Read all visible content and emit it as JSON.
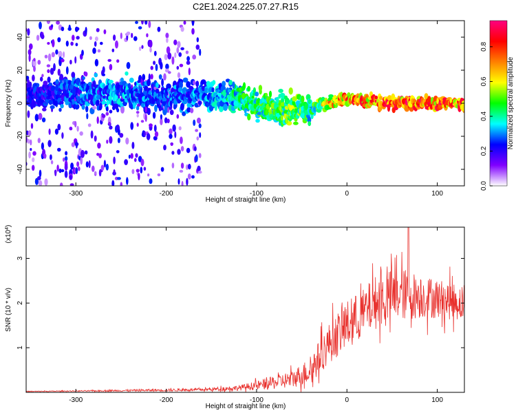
{
  "title": "C2E1.2024.225.07.27.R15",
  "colors": {
    "snr_line": "#e8302c",
    "frame": "#000000"
  },
  "chart_data": [
    {
      "type": "heatmap",
      "name": "spectrogram",
      "xlabel": "Height of straight line (km)",
      "ylabel": "Frequency (Hz)",
      "xlim": [
        -355,
        130
      ],
      "ylim": [
        -50,
        50
      ],
      "xticks": [
        -300,
        -200,
        -100,
        0,
        100
      ],
      "yticks": [
        -40,
        -20,
        0,
        20,
        40
      ],
      "xtick_labels": [
        "-300",
        "-200",
        "-100",
        "0",
        "100"
      ],
      "ytick_labels": [
        "-40",
        "-20",
        "0",
        "20",
        "40"
      ],
      "colorbar": {
        "label": "Normalized spectral amplitude",
        "range": [
          0,
          0.95
        ],
        "ticks": [
          0.0,
          0.2,
          0.4,
          0.6,
          0.8
        ],
        "tick_labels": [
          "0.0",
          "0.2",
          "0.4",
          "0.6",
          "0.8"
        ],
        "colormap": [
          "#ffffff",
          "#8000ff",
          "#0000ff",
          "#00ffff",
          "#00ff00",
          "#ffff00",
          "#ff8000",
          "#ff0000",
          "#ff0080"
        ]
      },
      "ridge": {
        "x": [
          -350,
          -300,
          -250,
          -200,
          -170,
          -150,
          -120,
          -100,
          -80,
          -60,
          -50,
          -40,
          -30,
          -20,
          -10,
          0,
          30,
          60,
          100,
          125
        ],
        "freq": [
          5,
          6,
          6,
          3,
          5,
          5,
          3,
          -2,
          -3,
          -4,
          -3,
          -4,
          -1,
          0,
          2,
          3,
          1,
          0,
          0,
          0
        ],
        "amplitude": [
          0.25,
          0.3,
          0.35,
          0.3,
          0.32,
          0.35,
          0.45,
          0.5,
          0.5,
          0.55,
          0.55,
          0.45,
          0.55,
          0.7,
          0.75,
          0.8,
          0.85,
          0.85,
          0.85,
          0.85
        ]
      },
      "noise_region": [
        -355,
        -160
      ]
    },
    {
      "type": "line",
      "name": "snr",
      "xlabel": "Height of straight line (km)",
      "ylabel": "SNR (10 * v/v)",
      "scale_label": "(x10",
      "scale_exp": "4",
      "xlim": [
        -355,
        130
      ],
      "ylim": [
        0,
        3.7
      ],
      "xticks": [
        -300,
        -200,
        -100,
        0,
        100
      ],
      "yticks": [
        1,
        2,
        3
      ],
      "xtick_labels": [
        "-300",
        "-200",
        "-100",
        "0",
        "100"
      ],
      "ytick_labels": [
        "1",
        "2",
        "3"
      ],
      "series": [
        {
          "x": [
            -355,
            -300,
            -250,
            -200,
            -160,
            -120,
            -100,
            -80,
            -60,
            -40,
            -30,
            -20,
            -10,
            0,
            10,
            20,
            30,
            40,
            60,
            80,
            100,
            130
          ],
          "mean": [
            0.02,
            0.03,
            0.04,
            0.05,
            0.06,
            0.1,
            0.15,
            0.22,
            0.3,
            0.5,
            0.8,
            1.1,
            1.3,
            1.5,
            1.65,
            1.8,
            2.0,
            2.1,
            2.2,
            2.15,
            2.1,
            2.0
          ],
          "spread": [
            0.01,
            0.01,
            0.02,
            0.03,
            0.03,
            0.06,
            0.1,
            0.15,
            0.2,
            0.3,
            0.4,
            0.45,
            0.5,
            0.55,
            0.55,
            0.55,
            0.6,
            0.6,
            0.6,
            0.5,
            0.45,
            0.4
          ],
          "peak": 3.7
        }
      ]
    }
  ]
}
